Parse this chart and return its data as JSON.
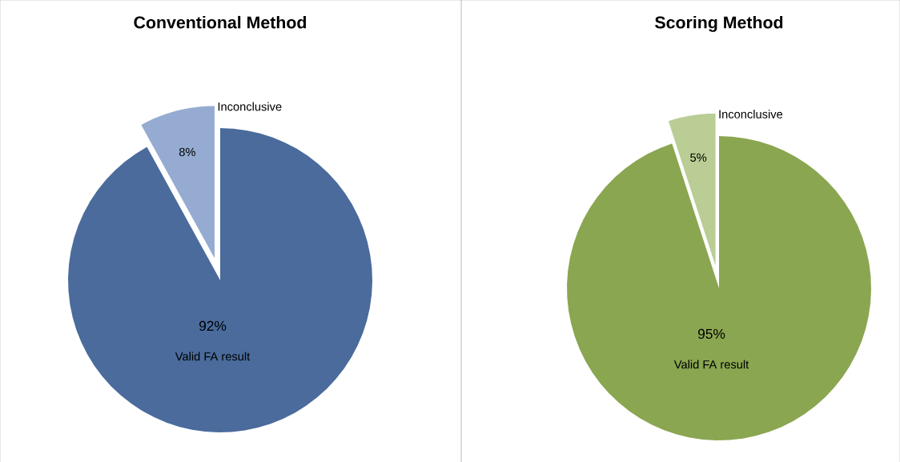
{
  "chart_data": [
    {
      "type": "pie",
      "title": "Conventional Method",
      "categories": [
        "Valid FA result",
        "Inconclusive"
      ],
      "values": [
        92,
        8
      ],
      "colors": [
        "#4a6b9c",
        "#95abd1"
      ],
      "value_labels": [
        "92%",
        "8%"
      ]
    },
    {
      "type": "pie",
      "title": "Scoring Method",
      "categories": [
        "Valid FA result",
        "Inconclusive"
      ],
      "values": [
        95,
        5
      ],
      "colors": [
        "#8aa650",
        "#b9cd95"
      ],
      "value_labels": [
        "95%",
        "5%"
      ]
    }
  ]
}
